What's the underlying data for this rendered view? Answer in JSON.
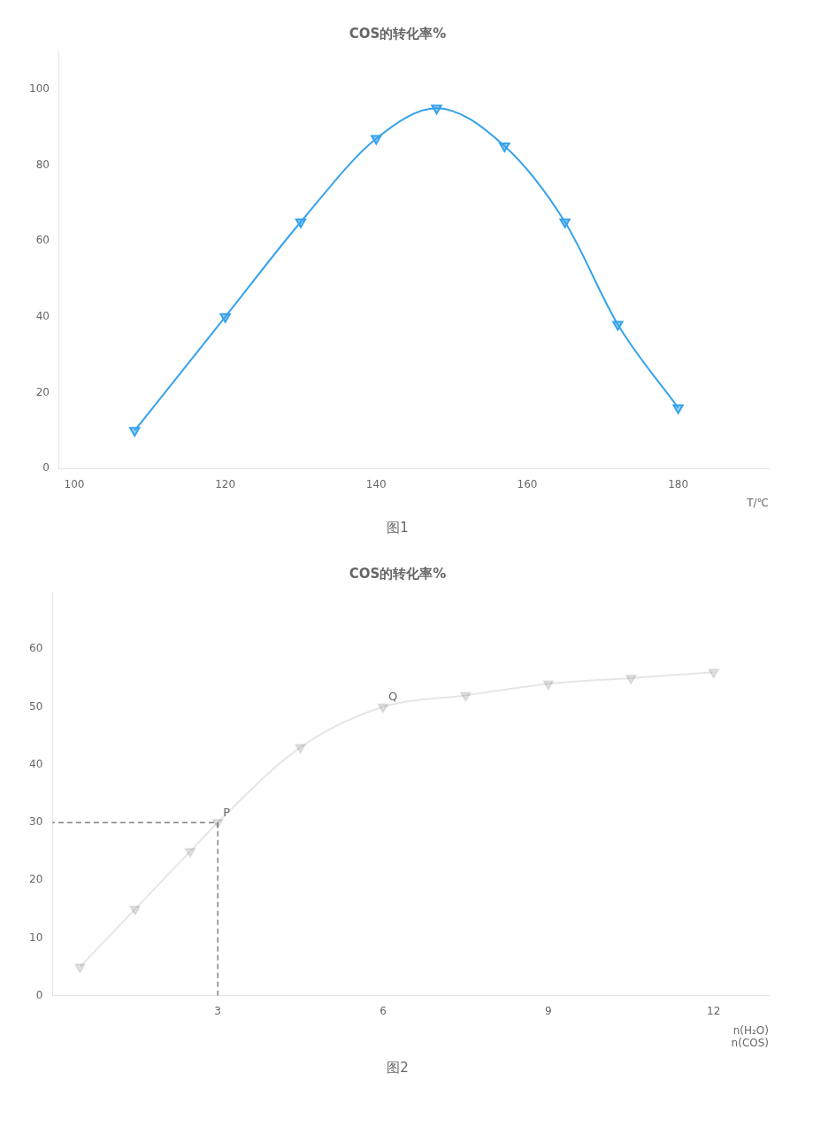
{
  "chart_data": [
    {
      "type": "line",
      "title": "COS的转化率%",
      "subtitle": "图1",
      "xlabel": "T/℃",
      "x": [
        108,
        120,
        130,
        140,
        148,
        157,
        165,
        172,
        180
      ],
      "series": [
        {
          "values": [
            10,
            40,
            65,
            87,
            95,
            85,
            65,
            38,
            16
          ],
          "marker": "triangle_down",
          "line_style": "solid"
        }
      ],
      "xlim": [
        98,
        192
      ],
      "ylim": [
        0,
        110
      ],
      "xticks": [
        100,
        120,
        140,
        160,
        180
      ],
      "yticks": [
        0,
        20,
        40,
        60,
        80,
        100
      ],
      "grid": false
    },
    {
      "type": "line",
      "title": "COS的转化率%",
      "subtitle": "图2",
      "xlabel": [
        "n(H₂O)",
        "n(COS)"
      ],
      "x": [
        0.5,
        1.5,
        2.5,
        3,
        4.5,
        6,
        7.5,
        9,
        10.5,
        12
      ],
      "series": [
        {
          "values": [
            5,
            15,
            25,
            30,
            43,
            50,
            52,
            54,
            55,
            56
          ],
          "marker": "triangle_down",
          "line_style": "solid"
        }
      ],
      "annotations": [
        {
          "text": "P",
          "x": 3,
          "y": 30,
          "line_style": "dashed"
        },
        {
          "text": "Q",
          "x": 6,
          "y": 50
        }
      ],
      "xlim": [
        0,
        13
      ],
      "ylim": [
        0,
        70
      ],
      "xticks": [
        3,
        6,
        9,
        12
      ],
      "yticks": [
        0,
        10,
        20,
        30,
        40,
        50,
        60
      ],
      "grid": false
    }
  ]
}
